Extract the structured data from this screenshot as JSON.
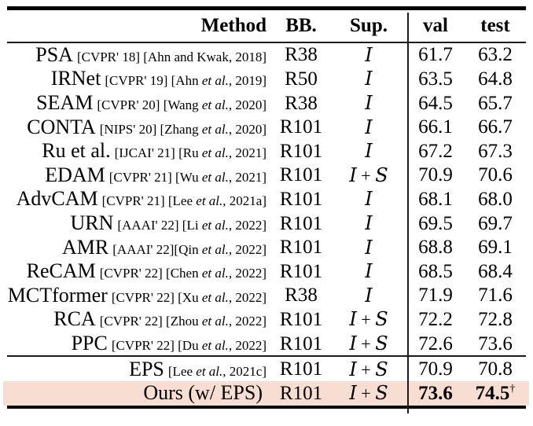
{
  "colors": {
    "highlight_row": "#f8ded2",
    "rule": "#000000",
    "text": "#000000"
  },
  "table": {
    "headers": {
      "method": "Method",
      "bb": "BB.",
      "sup": "Sup.",
      "val": "val",
      "test": "test"
    },
    "rows": [
      {
        "method": "PSA",
        "tag": "[CVPR' 18] ",
        "cite_pre": "[Ahn and Kwak, 2018]",
        "etal": "",
        "cite_post": "",
        "bb": "R38",
        "sup_parts": [
          "I"
        ],
        "val": "61.7",
        "test": "63.2",
        "test_sup": "",
        "bold_scores": false,
        "highlight": false
      },
      {
        "method": "IRNet",
        "tag": "[CVPR' 19] ",
        "cite_pre": "[Ahn ",
        "etal": "et al.",
        "cite_post": ", 2019]",
        "bb": "R50",
        "sup_parts": [
          "I"
        ],
        "val": "63.5",
        "test": "64.8",
        "test_sup": "",
        "bold_scores": false,
        "highlight": false
      },
      {
        "method": "SEAM",
        "tag": "[CVPR' 20] ",
        "cite_pre": "[Wang ",
        "etal": "et al.",
        "cite_post": ", 2020]",
        "bb": "R38",
        "sup_parts": [
          "I"
        ],
        "val": "64.5",
        "test": "65.7",
        "test_sup": "",
        "bold_scores": false,
        "highlight": false
      },
      {
        "method": "CONTA",
        "tag": "[NIPS' 20] ",
        "cite_pre": "[Zhang ",
        "etal": "et al.",
        "cite_post": ", 2020]",
        "bb": "R101",
        "sup_parts": [
          "I"
        ],
        "val": "66.1",
        "test": "66.7",
        "test_sup": "",
        "bold_scores": false,
        "highlight": false
      },
      {
        "method": "Ru et al.",
        "tag": "[IJCAI' 21] ",
        "cite_pre": "[Ru ",
        "etal": "et al.",
        "cite_post": ", 2021]",
        "bb": "R101",
        "sup_parts": [
          "I"
        ],
        "val": "67.2",
        "test": "67.3",
        "test_sup": "",
        "bold_scores": false,
        "highlight": false
      },
      {
        "method": "EDAM",
        "tag": "[CVPR' 21] ",
        "cite_pre": "[Wu ",
        "etal": "et al.",
        "cite_post": ", 2021]",
        "bb": "R101",
        "sup_parts": [
          "I",
          "S"
        ],
        "val": "70.9",
        "test": "70.6",
        "test_sup": "",
        "bold_scores": false,
        "highlight": false
      },
      {
        "method": "AdvCAM",
        "tag": "[CVPR' 21] ",
        "cite_pre": "[Lee ",
        "etal": "et al.",
        "cite_post": ", 2021a]",
        "bb": "R101",
        "sup_parts": [
          "I"
        ],
        "val": "68.1",
        "test": "68.0",
        "test_sup": "",
        "bold_scores": false,
        "highlight": false
      },
      {
        "method": "URN",
        "tag": "[AAAI' 22] ",
        "cite_pre": "[Li ",
        "etal": "et al.",
        "cite_post": ", 2022]",
        "bb": "R101",
        "sup_parts": [
          "I"
        ],
        "val": "69.5",
        "test": "69.7",
        "test_sup": "",
        "bold_scores": false,
        "highlight": false
      },
      {
        "method": "AMR",
        "tag": "[AAAI' 22]",
        "cite_pre": "[Qin ",
        "etal": "et al.",
        "cite_post": ", 2022]",
        "bb": "R101",
        "sup_parts": [
          "I"
        ],
        "val": "68.8",
        "test": "69.1",
        "test_sup": "",
        "bold_scores": false,
        "highlight": false
      },
      {
        "method": "ReCAM",
        "tag": "[CVPR' 22] ",
        "cite_pre": "[Chen ",
        "etal": "et al.",
        "cite_post": ", 2022]",
        "bb": "R101",
        "sup_parts": [
          "I"
        ],
        "val": "68.5",
        "test": "68.4",
        "test_sup": "",
        "bold_scores": false,
        "highlight": false
      },
      {
        "method": "MCTformer",
        "tag": "[CVPR' 22] ",
        "cite_pre": "[Xu ",
        "etal": "et al.",
        "cite_post": ", 2022]",
        "bb": "R38",
        "sup_parts": [
          "I"
        ],
        "val": "71.9",
        "test": "71.6",
        "test_sup": "",
        "bold_scores": false,
        "highlight": false
      },
      {
        "method": "RCA",
        "tag": "[CVPR' 22] ",
        "cite_pre": "[Zhou ",
        "etal": "et al.",
        "cite_post": ", 2022]",
        "bb": "R101",
        "sup_parts": [
          "I",
          "S"
        ],
        "val": "72.2",
        "test": "72.8",
        "test_sup": "",
        "bold_scores": false,
        "highlight": false
      },
      {
        "method": "PPC",
        "tag": "[CVPR' 22] ",
        "cite_pre": "[Du ",
        "etal": "et al.",
        "cite_post": ", 2022]",
        "bb": "R101",
        "sup_parts": [
          "I",
          "S"
        ],
        "val": "72.6",
        "test": "73.6",
        "test_sup": "",
        "bold_scores": false,
        "highlight": false
      }
    ],
    "footer_rows": [
      {
        "method": "EPS",
        "tag": "",
        "cite_pre": "[Lee ",
        "etal": "et al.",
        "cite_post": ", 2021c]",
        "bb": "R101",
        "sup_parts": [
          "I",
          "S"
        ],
        "val": "70.9",
        "test": "70.8",
        "test_sup": "",
        "bold_scores": false,
        "highlight": false
      },
      {
        "method": "Ours (w/ EPS)",
        "tag": "",
        "cite_pre": "",
        "etal": "",
        "cite_post": "",
        "bb": "R101",
        "sup_parts": [
          "I",
          "S"
        ],
        "val": "73.6",
        "test": "74.5",
        "test_sup": "†",
        "bold_scores": true,
        "highlight": true
      }
    ],
    "sup_plus_separator": " + "
  }
}
